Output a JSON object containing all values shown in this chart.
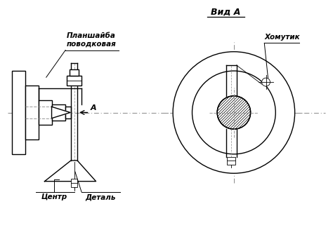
{
  "background_color": "#ffffff",
  "line_color": "#000000",
  "dash_color": "#888888",
  "labels": {
    "planshayba": "Планшайба\nповодковая",
    "khomutik": "Хомутик",
    "tsentr": "Центр",
    "detal": "Деталь",
    "vid_a": "Вид А",
    "a_arrow": "А"
  },
  "fig_width": 4.74,
  "fig_height": 3.21,
  "dpi": 100
}
